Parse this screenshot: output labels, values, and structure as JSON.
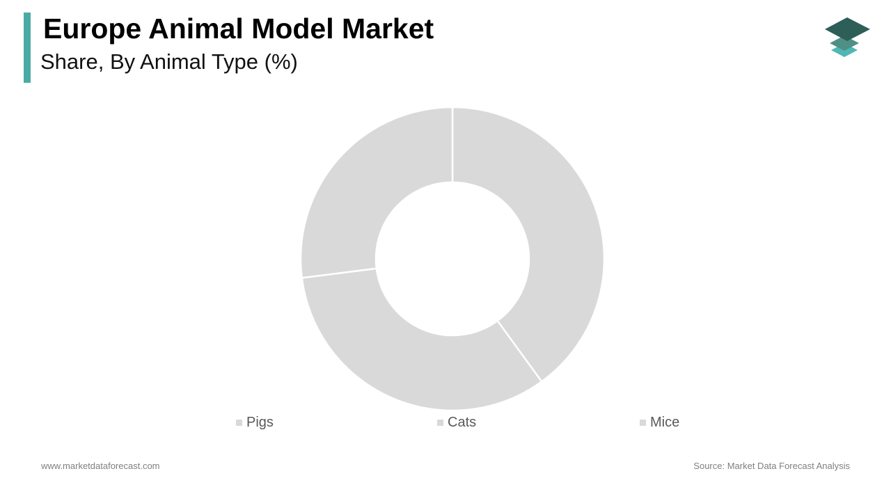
{
  "header": {
    "title": "Europe Animal Model Market",
    "subtitle": "Share, By Animal Type (%)"
  },
  "logo": {
    "icon": "stacked-layers-logo-icon",
    "colors": [
      "#2e5e58",
      "#4f8f86",
      "#4fb8b2"
    ]
  },
  "chart_data": {
    "type": "pie",
    "variant": "donut",
    "categories": [
      "Pigs",
      "Cats",
      "Mice"
    ],
    "values": [
      40,
      33,
      27
    ],
    "colors": [
      "#d9d9d9",
      "#d9d9d9",
      "#d9d9d9"
    ],
    "legend_position": "bottom",
    "title": "",
    "subtitle": ""
  },
  "footer": {
    "website": "www.marketdataforecast.com",
    "source": "Source: Market Data Forecast Analysis"
  },
  "theme": {
    "accent": "#4aaba6",
    "slice_separator": "#ffffff"
  }
}
